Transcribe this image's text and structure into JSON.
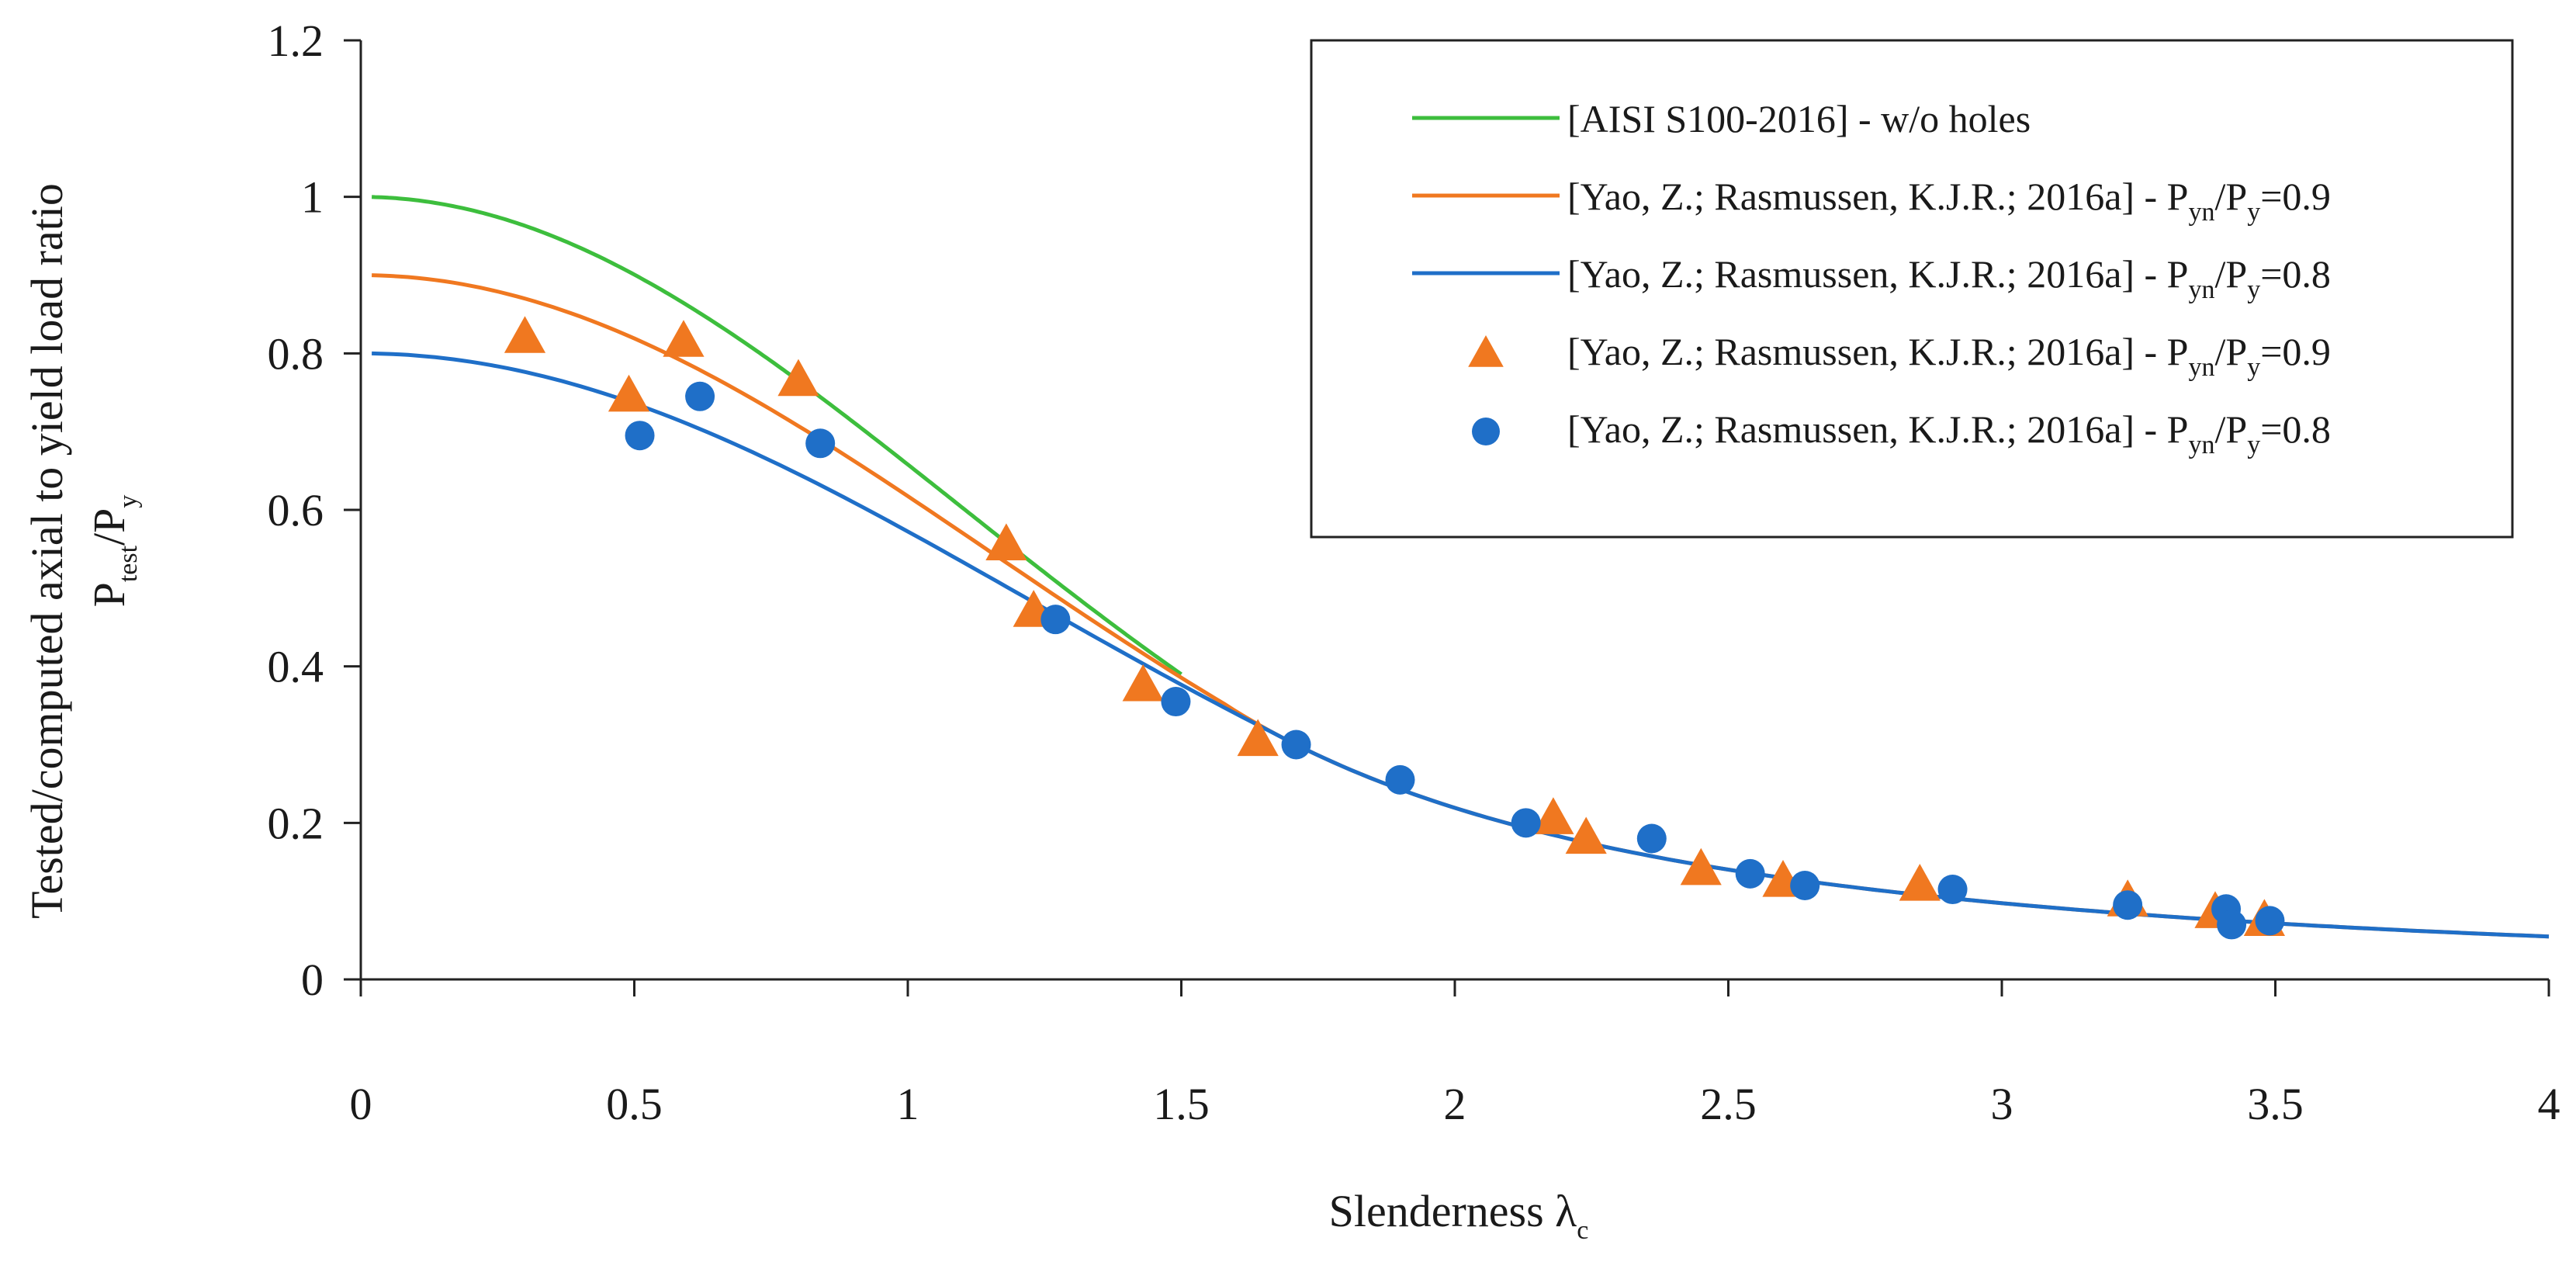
{
  "chart_data": {
    "type": "scatter",
    "xlabel": "Slenderness λc",
    "xlabel_main": "Slenderness λ",
    "xlabel_sub": "c",
    "ylabel_line1": "Tested/computed axial to yield load ratio",
    "ylabel_line2_main": "P",
    "ylabel_line2_sub1": "test",
    "ylabel_line2_mid": "/P",
    "ylabel_line2_sub2": "y",
    "xlim": [
      0,
      4
    ],
    "ylim": [
      0,
      1.2
    ],
    "x_ticks": [
      0,
      0.5,
      1,
      1.5,
      2,
      2.5,
      3,
      3.5,
      4
    ],
    "x_tick_labels": [
      "0",
      "0.5",
      "1",
      "1.5",
      "2",
      "2.5",
      "3",
      "3.5",
      "4"
    ],
    "y_ticks": [
      0,
      0.2,
      0.4,
      0.6,
      0.8,
      1,
      1.2
    ],
    "y_tick_labels": [
      "0",
      "0.2",
      "0.4",
      "0.6",
      "0.8",
      "1",
      "1.2"
    ],
    "grid": false,
    "legend_position": "top-right",
    "series": [
      {
        "name": "[AISI S100-2016] - w/o holes",
        "kind": "line",
        "color": "#3DBE3D",
        "reduction": 1.0,
        "x_start": 0.02,
        "x_end": 1.5,
        "legend_main": "[AISI S100-2016] - w/o holes"
      },
      {
        "name": "[Yao, Z.; Rasmussen, K.J.R.; 2016a] - Pyn/Py=0.9",
        "kind": "line",
        "color": "#F07820",
        "reduction": 0.9,
        "x_start": 0.02,
        "x_end": 4.0,
        "legend_main": "[Yao, Z.; Rasmussen, K.J.R.; 2016a] - P",
        "legend_sub1": "yn",
        "legend_mid": "/P",
        "legend_sub2": "y",
        "legend_tail": "=0.9"
      },
      {
        "name": "[Yao, Z.; Rasmussen, K.J.R.; 2016a] - Pyn/Py=0.8",
        "kind": "line",
        "color": "#1F6FC8",
        "reduction": 0.8,
        "x_start": 0.02,
        "x_end": 4.0,
        "legend_main": "[Yao, Z.; Rasmussen, K.J.R.; 2016a] - P",
        "legend_sub1": "yn",
        "legend_mid": "/P",
        "legend_sub2": "y",
        "legend_tail": "=0.8"
      },
      {
        "name": "[Yao, Z.; Rasmussen, K.J.R.; 2016a] - Pyn/Py=0.9",
        "kind": "marker",
        "marker": "triangle",
        "color": "#F07820",
        "legend_main": "[Yao, Z.; Rasmussen, K.J.R.; 2016a] - P",
        "legend_sub1": "yn",
        "legend_mid": "/P",
        "legend_sub2": "y",
        "legend_tail": "=0.9",
        "points": [
          [
            0.3,
            0.82
          ],
          [
            0.49,
            0.745
          ],
          [
            0.59,
            0.815
          ],
          [
            0.8,
            0.765
          ],
          [
            1.18,
            0.555
          ],
          [
            1.23,
            0.47
          ],
          [
            1.43,
            0.375
          ],
          [
            1.64,
            0.305
          ],
          [
            2.18,
            0.205
          ],
          [
            2.24,
            0.18
          ],
          [
            2.45,
            0.14
          ],
          [
            2.6,
            0.125
          ],
          [
            2.85,
            0.12
          ],
          [
            3.23,
            0.1
          ],
          [
            3.39,
            0.085
          ],
          [
            3.48,
            0.075
          ]
        ]
      },
      {
        "name": "[Yao, Z.; Rasmussen, K.J.R.; 2016a] - Pyn/Py=0.8",
        "kind": "marker",
        "marker": "circle",
        "color": "#1F6FC8",
        "legend_main": "[Yao, Z.; Rasmussen, K.J.R.; 2016a] - P",
        "legend_sub1": "yn",
        "legend_mid": "/P",
        "legend_sub2": "y",
        "legend_tail": "=0.8",
        "points": [
          [
            0.51,
            0.695
          ],
          [
            0.62,
            0.745
          ],
          [
            0.84,
            0.685
          ],
          [
            1.27,
            0.46
          ],
          [
            1.49,
            0.355
          ],
          [
            1.71,
            0.3
          ],
          [
            1.9,
            0.255
          ],
          [
            2.13,
            0.2
          ],
          [
            2.36,
            0.18
          ],
          [
            2.54,
            0.135
          ],
          [
            2.64,
            0.12
          ],
          [
            2.91,
            0.115
          ],
          [
            3.23,
            0.095
          ],
          [
            3.41,
            0.09
          ],
          [
            3.42,
            0.07
          ],
          [
            3.49,
            0.075
          ]
        ]
      }
    ]
  }
}
